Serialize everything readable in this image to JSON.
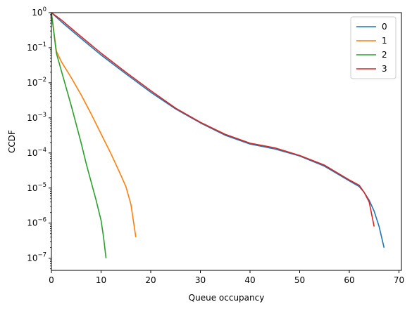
{
  "chart_data": {
    "type": "line",
    "title": "",
    "xlabel": "Queue occupancy",
    "ylabel": "CCDF",
    "xlim": [
      0,
      70.5
    ],
    "ylim": [
      4.5e-08,
      1
    ],
    "yscale": "log",
    "x_ticks": [
      0,
      10,
      20,
      30,
      40,
      50,
      60,
      70
    ],
    "x_tick_labels": [
      "0",
      "10",
      "20",
      "30",
      "40",
      "50",
      "60",
      "70"
    ],
    "y_ticks": [
      1e-07,
      1e-06,
      1e-05,
      0.0001,
      0.001,
      0.01,
      0.1,
      1
    ],
    "y_tick_mantissas": [
      "10",
      "10",
      "10",
      "10",
      "10",
      "10",
      "10",
      "10"
    ],
    "y_tick_exponents": [
      "−7",
      "−6",
      "−5",
      "−4",
      "−3",
      "−2",
      "−1",
      "0"
    ],
    "grid": false,
    "legend_position": "top-right",
    "series": [
      {
        "name": "0",
        "color": "#1f77b4",
        "x": [
          0,
          2,
          5,
          10,
          15,
          20,
          25,
          30,
          35,
          40,
          45,
          50,
          55,
          60,
          62,
          63,
          64,
          65,
          66,
          67
        ],
        "y": [
          1,
          0.55,
          0.24,
          0.062,
          0.018,
          0.0054,
          0.0018,
          0.00072,
          0.00032,
          0.00018,
          0.00013,
          8.2e-05,
          4.2e-05,
          1.6e-05,
          1.1e-05,
          7.5e-06,
          4.5e-06,
          2.2e-06,
          8e-07,
          2e-07
        ]
      },
      {
        "name": "1",
        "color": "#ff7f0e",
        "x": [
          0,
          1,
          2,
          4,
          6,
          8,
          10,
          12,
          14,
          15,
          16,
          17
        ],
        "y": [
          1,
          0.08,
          0.04,
          0.014,
          0.0045,
          0.0013,
          0.00035,
          9.5e-05,
          2.3e-05,
          1.1e-05,
          3.5e-06,
          4e-07
        ]
      },
      {
        "name": "2",
        "color": "#2ca02c",
        "x": [
          0,
          1,
          2,
          3,
          4,
          5,
          6,
          7,
          8,
          9,
          10,
          10.5,
          11
        ],
        "y": [
          1,
          0.07,
          0.022,
          0.007,
          0.0022,
          0.00065,
          0.00019,
          5e-05,
          1.5e-05,
          4.5e-06,
          1.2e-06,
          4e-07,
          1e-07
        ]
      },
      {
        "name": "3",
        "color": "#d62728",
        "x": [
          0,
          2,
          5,
          10,
          15,
          20,
          25,
          30,
          35,
          40,
          45,
          50,
          55,
          60,
          62,
          63,
          64,
          65
        ],
        "y": [
          1,
          0.62,
          0.27,
          0.07,
          0.02,
          0.006,
          0.0019,
          0.00075,
          0.00034,
          0.00019,
          0.00014,
          8.5e-05,
          4.5e-05,
          1.7e-05,
          1.2e-05,
          7.5e-06,
          4e-06,
          8e-07
        ]
      }
    ]
  }
}
